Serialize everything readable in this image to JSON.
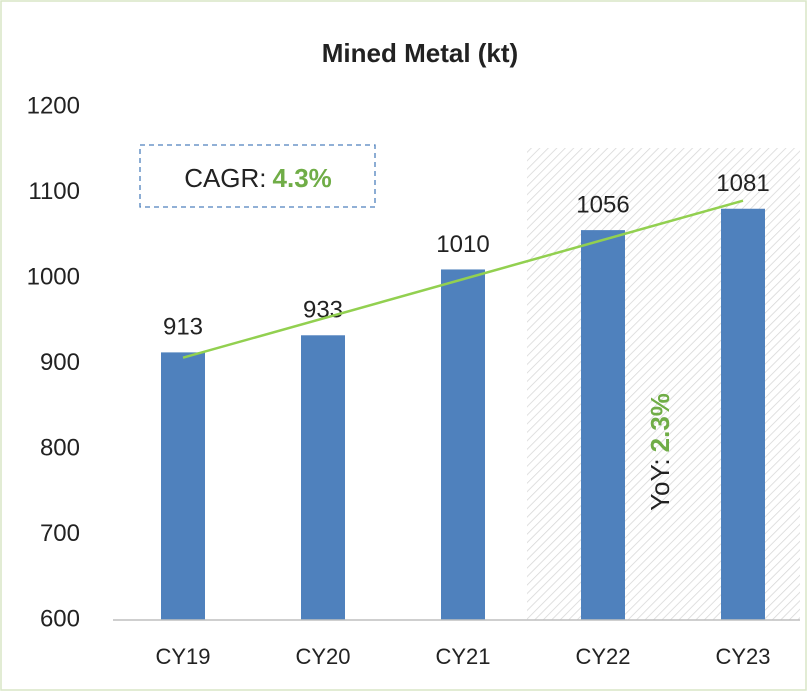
{
  "chart_data": {
    "type": "bar",
    "title": "Mined Metal (kt)",
    "categories": [
      "CY19",
      "CY20",
      "CY21",
      "CY22",
      "CY23"
    ],
    "values": [
      913,
      933,
      1010,
      1056,
      1081
    ],
    "color": "#4f81bd",
    "ylim": [
      600,
      1200
    ],
    "yticks": [
      600,
      700,
      800,
      900,
      1000,
      1100,
      1200
    ],
    "trendline_color": "#92d050",
    "cagr_label": "CAGR:",
    "cagr_value": "4.3%",
    "yoy_label": "YoY:",
    "yoy_value": "2.3%",
    "highlight_color": "#70ad47"
  }
}
